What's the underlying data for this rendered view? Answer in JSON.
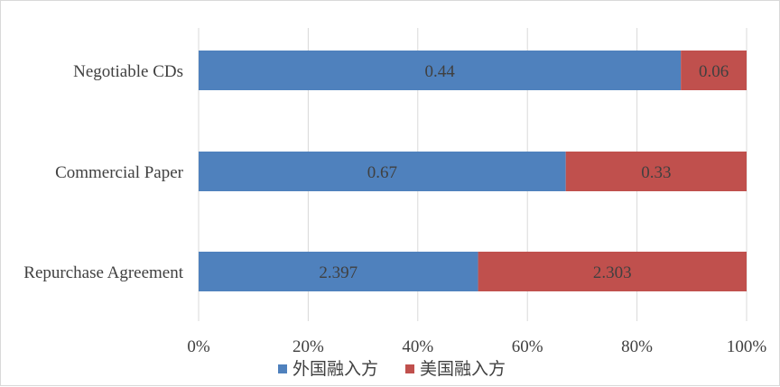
{
  "chart_data": {
    "type": "bar",
    "orientation": "horizontal",
    "stacked": "percent",
    "categories": [
      "Negotiable CDs",
      "Commercial Paper",
      "Repurchase Agreement"
    ],
    "series": [
      {
        "name": "外国融入方",
        "values": [
          0.44,
          0.67,
          2.397
        ],
        "labels": [
          "0.44",
          "0.67",
          "2.397"
        ],
        "color": "#4f81bd"
      },
      {
        "name": "美国融入方",
        "values": [
          0.06,
          0.33,
          2.303
        ],
        "labels": [
          "0.06",
          "0.33",
          "2.303"
        ],
        "color": "#c0504d"
      }
    ],
    "x_ticks": [
      "0%",
      "20%",
      "40%",
      "60%",
      "80%",
      "100%"
    ],
    "xlim": [
      0,
      100
    ],
    "grid": true,
    "legend_position": "bottom"
  }
}
